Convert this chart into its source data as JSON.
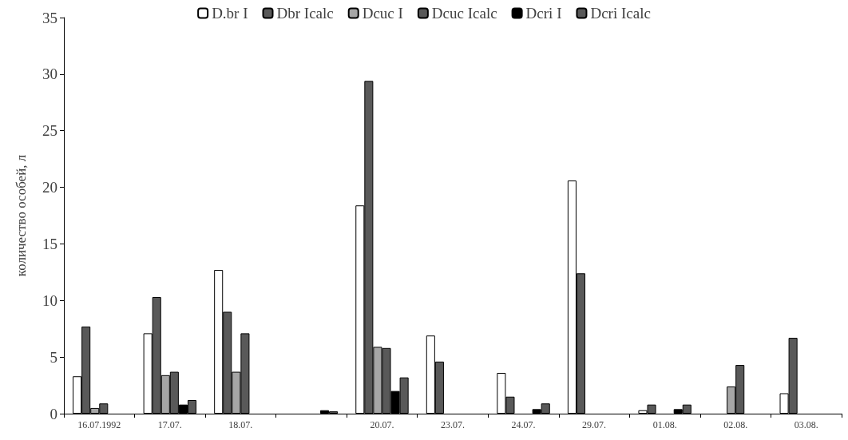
{
  "chart_data": {
    "type": "bar",
    "ylabel": "количество особей, л",
    "categories": [
      "16.07.1992",
      "17.07.",
      "18.07.",
      null,
      "20.07.",
      "23.07.",
      "24.07.",
      "29.07.",
      "01.08.",
      "02.08.",
      "03.08."
    ],
    "series": [
      {
        "name": "D.br I",
        "color": "#ffffff",
        "values": [
          3.3,
          7.1,
          12.7,
          null,
          18.4,
          6.9,
          3.6,
          20.6,
          0.3,
          null,
          1.8
        ]
      },
      {
        "name": "Dbr Icalc",
        "color": "#595959",
        "values": [
          7.7,
          10.3,
          9.0,
          null,
          29.4,
          4.6,
          1.5,
          12.4,
          0.8,
          null,
          6.7
        ]
      },
      {
        "name": "Dcuc I",
        "color": "#a6a6a6",
        "values": [
          0.5,
          3.4,
          3.7,
          null,
          5.9,
          null,
          null,
          null,
          null,
          2.4,
          null
        ]
      },
      {
        "name": "Dcuc Icalc",
        "color": "#595959",
        "values": [
          0.9,
          3.7,
          7.1,
          null,
          5.8,
          null,
          null,
          null,
          null,
          4.3,
          null
        ]
      },
      {
        "name": "Dcri I",
        "color": "#000000",
        "values": [
          null,
          0.8,
          null,
          0.3,
          2.0,
          null,
          0.4,
          null,
          0.4,
          null,
          null
        ]
      },
      {
        "name": "Dcri Icalc",
        "color": "#595959",
        "values": [
          null,
          1.2,
          null,
          0.2,
          3.2,
          null,
          0.9,
          null,
          0.8,
          null,
          null
        ]
      }
    ],
    "ylim": [
      0,
      35
    ],
    "yticks": [
      0,
      5,
      10,
      15,
      20,
      25,
      30,
      35
    ],
    "grid": false,
    "legend": "top"
  }
}
